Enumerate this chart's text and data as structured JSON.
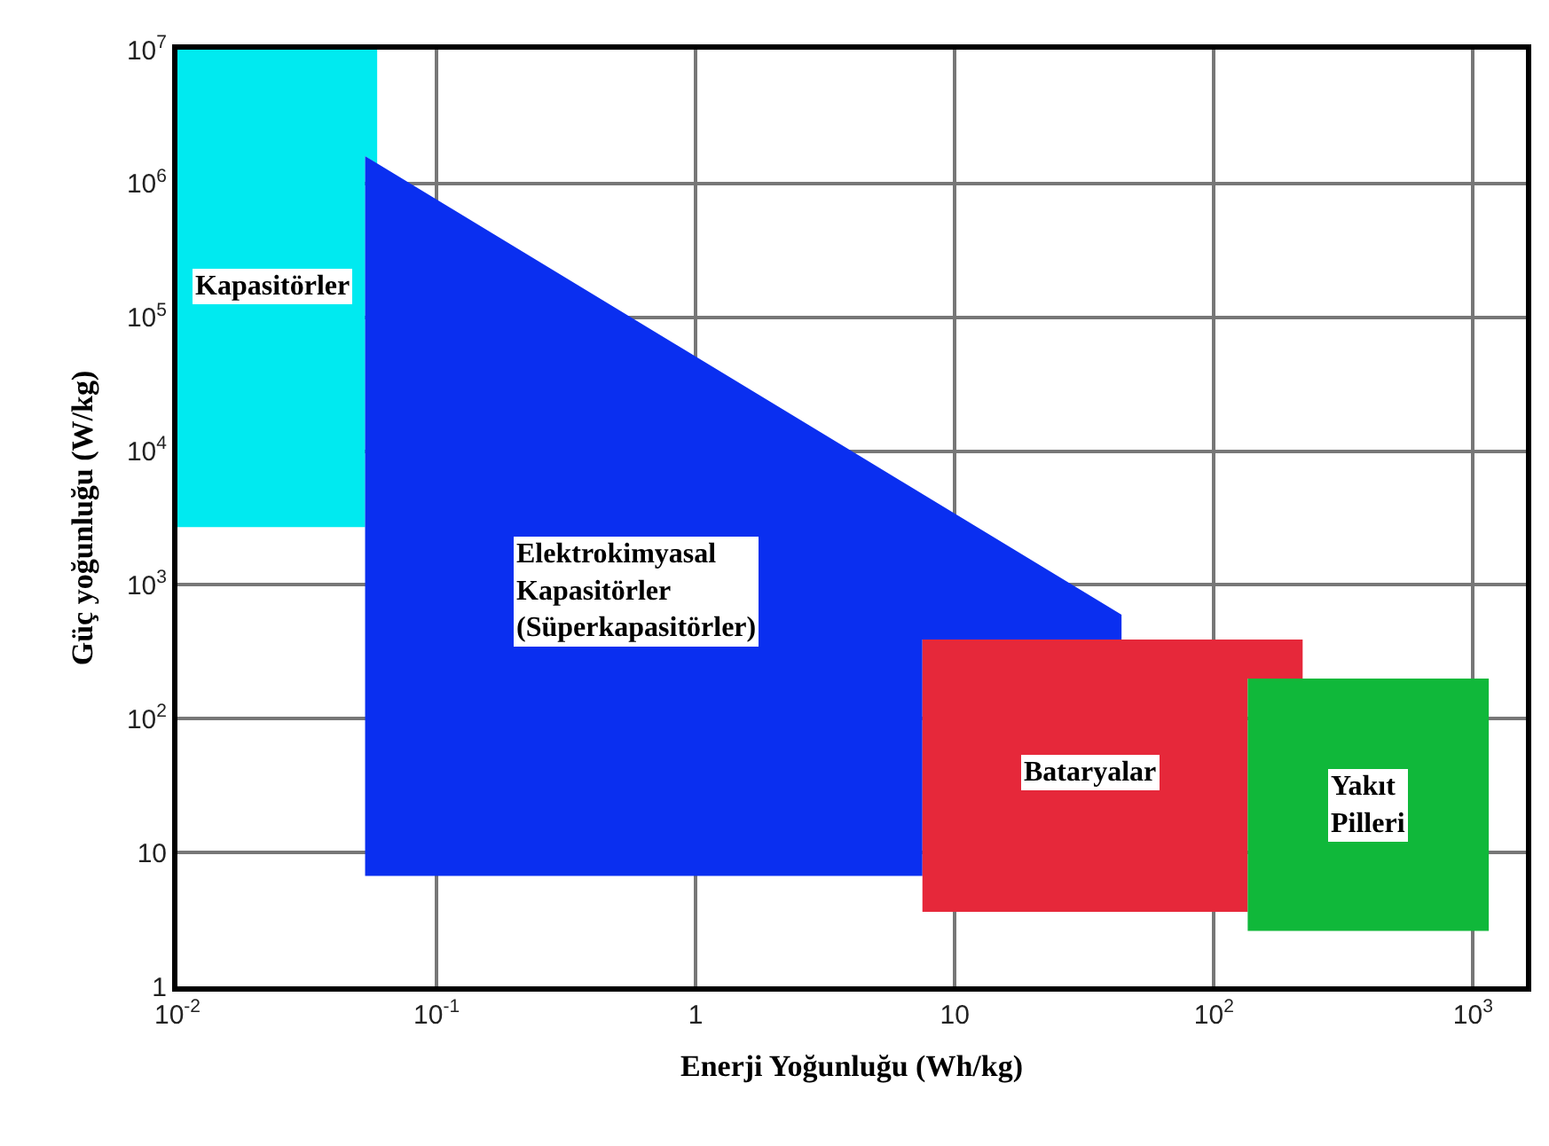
{
  "chart_data": {
    "type": "area",
    "xlabel": "Enerji Yoğunluğu (Wh/kg)",
    "ylabel": "Güç yoğunluğu (W/kg)",
    "log": "xy",
    "grid": true,
    "xlim": [
      0.01,
      1600
    ],
    "ylim": [
      1,
      10000000
    ],
    "xticks": [
      {
        "value": 0.01,
        "label": "10$^{-2}$"
      },
      {
        "value": 0.1,
        "label": "10$^{-1}$"
      },
      1,
      10,
      {
        "value": 100,
        "label": "10$^{2}$"
      },
      {
        "value": 1000,
        "label": "10$^{3}$"
      }
    ],
    "yticks": [
      1,
      10,
      {
        "value": 100,
        "label": "10$^{2}$"
      },
      {
        "value": 1000,
        "label": "10$^{3}$"
      },
      {
        "value": 10000,
        "label": "10$^{4}$"
      },
      {
        "value": 100000,
        "label": "10$^{5}$"
      },
      {
        "value": 1000000,
        "label": "10$^{6}$"
      },
      {
        "value": 10000000,
        "label": "10$^{7}$"
      }
    ],
    "series": [
      {
        "name": "Kapasitörler",
        "color": "#00eaf0",
        "x": [
          0.01,
          0.059,
          0.059,
          0.053,
          0.053,
          0.01
        ],
        "values": [
          10000000,
          10000000,
          1400000,
          1600000,
          2700,
          2700
        ]
      },
      {
        "name": "Elektrokimyasal\nKapasitörler\n(Süperkapasitörler)",
        "color": "#0a2ff0",
        "x": [
          0.053,
          44,
          44,
          7.5,
          7.5,
          0.053
        ],
        "values": [
          1600000,
          600,
          390,
          390,
          6.7,
          6.7
        ]
      },
      {
        "name": "Bataryalar",
        "color": "#e6283a",
        "x": [
          7.5,
          220,
          220,
          135,
          135,
          7.5
        ],
        "values": [
          390,
          390,
          200,
          200,
          3.6,
          3.6
        ]
      },
      {
        "name": "Yakıt\nPilleri",
        "color": "#10b83a",
        "x": [
          135,
          1150,
          1150,
          135
        ],
        "values": [
          200,
          200,
          2.6,
          2.6
        ]
      }
    ]
  }
}
